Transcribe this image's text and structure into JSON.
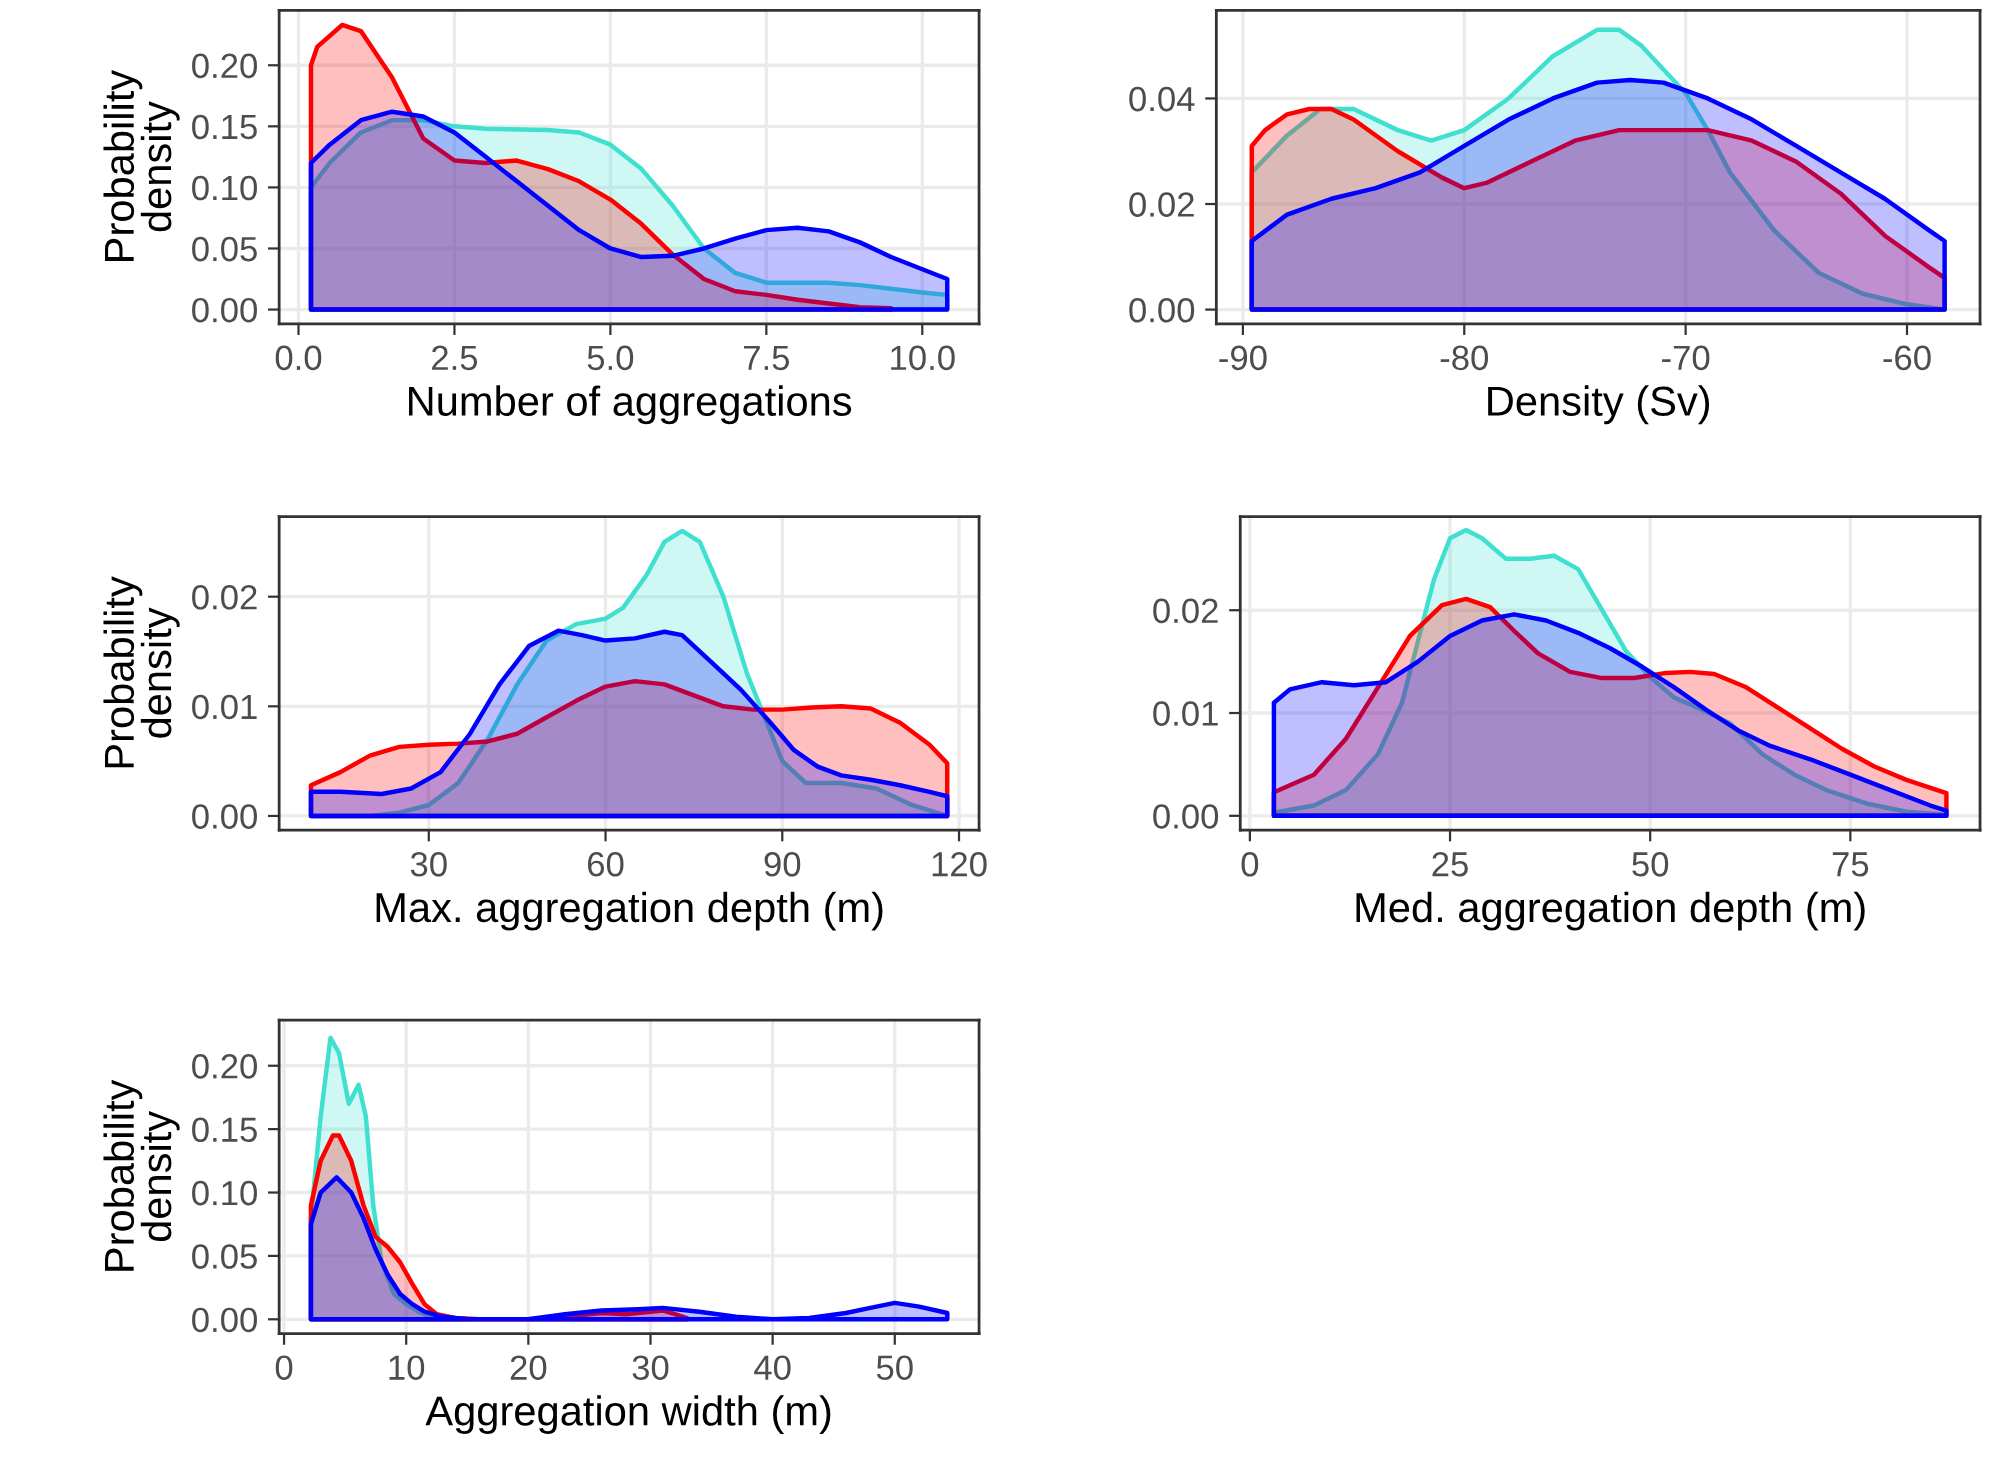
{
  "chart_data": [
    {
      "type": "area",
      "xlabel": "Number of aggregations",
      "ylabel": "Probability\ndensity",
      "xlim": [
        -0.31,
        10.91
      ],
      "ylim": [
        -0.0117,
        0.245
      ],
      "xticks": [
        {
          "value": 0,
          "label": "0.0"
        },
        2.5,
        {
          "value": 5,
          "label": "5.0"
        },
        7.5,
        {
          "value": 10,
          "label": "10.0"
        }
      ],
      "yticks": [
        {
          "value": 0,
          "label": "0.00"
        },
        0.05,
        {
          "value": 0.1,
          "label": "0.10"
        },
        0.15,
        {
          "value": 0.2,
          "label": "0.20"
        }
      ],
      "grid": true,
      "series": [
        {
          "color": "#40e0d0",
          "x": [
            0.2,
            0.5,
            1.0,
            1.5,
            2.0,
            2.5,
            3.0,
            4.0,
            4.5,
            5.0,
            5.5,
            6.0,
            6.5,
            7.0,
            7.5,
            8.0,
            8.5,
            9.0,
            9.5,
            10.0,
            10.4
          ],
          "values": [
            0.1,
            0.12,
            0.145,
            0.155,
            0.155,
            0.15,
            0.148,
            0.147,
            0.145,
            0.135,
            0.115,
            0.085,
            0.05,
            0.03,
            0.022,
            0.022,
            0.022,
            0.02,
            0.017,
            0.014,
            0.012
          ]
        },
        {
          "color": "#ff0000",
          "x": [
            0.2,
            0.3,
            0.7,
            1.0,
            1.5,
            2.0,
            2.5,
            3.0,
            3.5,
            4.0,
            4.5,
            5.0,
            5.5,
            6.0,
            6.5,
            7.0,
            7.5,
            8.0,
            8.5,
            9.0,
            9.5
          ],
          "values": [
            0.2,
            0.215,
            0.233,
            0.228,
            0.19,
            0.14,
            0.122,
            0.12,
            0.122,
            0.115,
            0.105,
            0.09,
            0.07,
            0.045,
            0.025,
            0.015,
            0.012,
            0.008,
            0.005,
            0.002,
            0.001
          ]
        },
        {
          "color": "#0000ff",
          "x": [
            0.2,
            0.5,
            1.0,
            1.5,
            2.0,
            2.5,
            3.0,
            3.5,
            4.0,
            4.5,
            5.0,
            5.5,
            6.0,
            6.5,
            7.0,
            7.5,
            8.0,
            8.5,
            9.0,
            9.5,
            10.0,
            10.4
          ],
          "values": [
            0.12,
            0.135,
            0.155,
            0.162,
            0.158,
            0.145,
            0.125,
            0.105,
            0.085,
            0.065,
            0.05,
            0.043,
            0.044,
            0.05,
            0.058,
            0.065,
            0.067,
            0.064,
            0.055,
            0.043,
            0.033,
            0.025
          ]
        }
      ]
    },
    {
      "type": "area",
      "xlabel": "Density (Sv)",
      "xlim": [
        -91.2,
        -56.7
      ],
      "ylim": [
        -0.0027,
        0.0567
      ],
      "xticks": [
        -90,
        -80,
        -70,
        -60
      ],
      "yticks": [
        {
          "value": 0,
          "label": "0.00"
        },
        0.02,
        0.04
      ],
      "grid": true,
      "series": [
        {
          "color": "#40e0d0",
          "x": [
            -89.6,
            -88,
            -86.5,
            -85,
            -83,
            -81.5,
            -80,
            -78,
            -76,
            -74,
            -73,
            -72,
            -70,
            -69,
            -68,
            -66,
            -64,
            -62,
            -60,
            -58.3
          ],
          "values": [
            0.026,
            0.033,
            0.038,
            0.038,
            0.034,
            0.032,
            0.034,
            0.04,
            0.048,
            0.053,
            0.053,
            0.05,
            0.041,
            0.034,
            0.026,
            0.015,
            0.007,
            0.003,
            0.001,
            0.0
          ]
        },
        {
          "color": "#ff0000",
          "x": [
            -89.6,
            -89,
            -88,
            -87,
            -86,
            -85,
            -83,
            -81,
            -80,
            -79,
            -77,
            -75,
            -73,
            -71,
            -69,
            -67,
            -65,
            -63,
            -61,
            -59,
            -58.3
          ],
          "values": [
            0.031,
            0.034,
            0.037,
            0.038,
            0.038,
            0.036,
            0.03,
            0.025,
            0.023,
            0.024,
            0.028,
            0.032,
            0.034,
            0.034,
            0.034,
            0.032,
            0.028,
            0.022,
            0.014,
            0.008,
            0.006
          ]
        },
        {
          "color": "#0000ff",
          "x": [
            -89.6,
            -88,
            -86,
            -84,
            -82,
            -80,
            -78,
            -76,
            -74,
            -72.5,
            -71,
            -69,
            -67,
            -65,
            -63,
            -61,
            -59,
            -58.3
          ],
          "values": [
            0.013,
            0.018,
            0.021,
            0.023,
            0.026,
            0.031,
            0.036,
            0.04,
            0.043,
            0.0435,
            0.043,
            0.04,
            0.036,
            0.031,
            0.026,
            0.021,
            0.015,
            0.013
          ]
        }
      ]
    },
    {
      "type": "area",
      "xlabel": "Max. aggregation depth (m)",
      "ylabel": "Probability\ndensity",
      "xlim": [
        4.6,
        123.4
      ],
      "ylim": [
        -0.0013,
        0.0273
      ],
      "xticks": [
        30,
        60,
        90,
        120
      ],
      "yticks": [
        {
          "value": 0,
          "label": "0.00"
        },
        0.01,
        0.02
      ],
      "grid": true,
      "series": [
        {
          "color": "#40e0d0",
          "x": [
            10,
            20,
            25,
            30,
            35,
            40,
            45,
            50,
            55,
            60,
            63,
            67,
            70,
            73,
            76,
            80,
            84,
            87,
            90,
            94,
            100,
            106,
            112,
            118
          ],
          "values": [
            0.0,
            0.0,
            0.0003,
            0.001,
            0.003,
            0.007,
            0.012,
            0.016,
            0.0175,
            0.018,
            0.019,
            0.022,
            0.025,
            0.026,
            0.025,
            0.02,
            0.013,
            0.009,
            0.005,
            0.003,
            0.003,
            0.0025,
            0.001,
            0.0
          ]
        },
        {
          "color": "#ff0000",
          "x": [
            10,
            15,
            20,
            25,
            30,
            35,
            40,
            45,
            50,
            55,
            60,
            65,
            70,
            75,
            80,
            85,
            90,
            95,
            100,
            105,
            110,
            115,
            118
          ],
          "values": [
            0.0028,
            0.004,
            0.0055,
            0.0063,
            0.0065,
            0.0066,
            0.0068,
            0.0075,
            0.009,
            0.0105,
            0.0118,
            0.0123,
            0.012,
            0.011,
            0.01,
            0.0097,
            0.0097,
            0.0099,
            0.01,
            0.0098,
            0.0085,
            0.0065,
            0.0048
          ]
        },
        {
          "color": "#0000ff",
          "x": [
            10,
            15,
            22,
            27,
            32,
            37,
            42,
            47,
            52,
            56,
            60,
            65,
            70,
            73,
            78,
            83,
            88,
            92,
            96,
            100,
            105,
            110,
            115,
            118
          ],
          "values": [
            0.0022,
            0.0022,
            0.002,
            0.0025,
            0.004,
            0.0075,
            0.012,
            0.0155,
            0.0169,
            0.0165,
            0.016,
            0.0162,
            0.0168,
            0.0165,
            0.014,
            0.0115,
            0.0085,
            0.006,
            0.0045,
            0.0037,
            0.0033,
            0.0028,
            0.0022,
            0.0018
          ]
        }
      ]
    },
    {
      "type": "area",
      "xlabel": "Med. aggregation depth (m)",
      "xlim": [
        -1.2,
        91.2
      ],
      "ylim": [
        -0.0014,
        0.0291
      ],
      "xticks": [
        0,
        25,
        50,
        75
      ],
      "yticks": [
        {
          "value": 0,
          "label": "0.00"
        },
        0.01,
        0.02
      ],
      "grid": true,
      "series": [
        {
          "color": "#40e0d0",
          "x": [
            3,
            8,
            12,
            16,
            19,
            21,
            23,
            25,
            27,
            29,
            32,
            35,
            38,
            41,
            44,
            47,
            50,
            53,
            56,
            60,
            64,
            68,
            72,
            77,
            82,
            87
          ],
          "values": [
            0.0003,
            0.001,
            0.0025,
            0.006,
            0.011,
            0.017,
            0.023,
            0.027,
            0.0278,
            0.027,
            0.025,
            0.025,
            0.0253,
            0.024,
            0.02,
            0.016,
            0.0135,
            0.0115,
            0.0105,
            0.009,
            0.006,
            0.004,
            0.0025,
            0.0012,
            0.0004,
            0.0001
          ]
        },
        {
          "color": "#ff0000",
          "x": [
            3,
            8,
            12,
            16,
            20,
            24,
            27,
            30,
            33,
            36,
            40,
            44,
            48,
            52,
            55,
            58,
            62,
            66,
            70,
            74,
            78,
            82,
            87
          ],
          "values": [
            0.0023,
            0.004,
            0.0075,
            0.0125,
            0.0175,
            0.0205,
            0.0211,
            0.0203,
            0.018,
            0.0158,
            0.014,
            0.0134,
            0.0134,
            0.0139,
            0.014,
            0.0138,
            0.0125,
            0.0105,
            0.0085,
            0.0065,
            0.0048,
            0.0035,
            0.0022
          ]
        },
        {
          "color": "#0000ff",
          "x": [
            3,
            5,
            9,
            13,
            17,
            21,
            25,
            29,
            33,
            37,
            41,
            45,
            49,
            53,
            57,
            61,
            65,
            70,
            75,
            80,
            85,
            87
          ],
          "values": [
            0.011,
            0.0123,
            0.013,
            0.0127,
            0.013,
            0.015,
            0.0175,
            0.019,
            0.0196,
            0.019,
            0.0178,
            0.0163,
            0.0145,
            0.0125,
            0.0103,
            0.0083,
            0.0068,
            0.0055,
            0.004,
            0.0025,
            0.001,
            0.0005
          ]
        }
      ]
    },
    {
      "type": "area",
      "xlabel": "Aggregation width (m)",
      "ylabel": "Probability\ndensity",
      "xlim": [
        -0.4,
        56.9
      ],
      "ylim": [
        -0.0113,
        0.236
      ],
      "xticks": [
        0,
        10,
        20,
        30,
        40,
        50
      ],
      "yticks": [
        {
          "value": 0,
          "label": "0.00"
        },
        0.05,
        {
          "value": 0.1,
          "label": "0.10"
        },
        0.15,
        {
          "value": 0.2,
          "label": "0.20"
        }
      ],
      "grid": true,
      "series": [
        {
          "color": "#40e0d0",
          "x": [
            2.2,
            3,
            3.8,
            4.5,
            5.3,
            6.1,
            6.7,
            7.3,
            8,
            9,
            10,
            11,
            12,
            13,
            15
          ],
          "values": [
            0.08,
            0.16,
            0.222,
            0.21,
            0.17,
            0.185,
            0.16,
            0.09,
            0.045,
            0.02,
            0.012,
            0.006,
            0.002,
            0.001,
            0.0
          ]
        },
        {
          "color": "#ff0000",
          "x": [
            2.2,
            3,
            4,
            4.5,
            5.5,
            6.5,
            7.5,
            8.5,
            9.5,
            10.5,
            11.5,
            12.5,
            14,
            16,
            20,
            23,
            26,
            28,
            30,
            31,
            32,
            33
          ],
          "values": [
            0.09,
            0.125,
            0.145,
            0.145,
            0.125,
            0.09,
            0.065,
            0.057,
            0.045,
            0.028,
            0.012,
            0.004,
            0.001,
            0.0,
            0.0,
            0.002,
            0.005,
            0.004,
            0.006,
            0.007,
            0.004,
            0.001
          ]
        },
        {
          "color": "#0000ff",
          "x": [
            2.2,
            3,
            4.3,
            5.5,
            6.5,
            7.5,
            8.5,
            9.5,
            10.5,
            11.5,
            13,
            15,
            20,
            23,
            26,
            29,
            31,
            34,
            37,
            40,
            43,
            46,
            48,
            50,
            52,
            54.3
          ],
          "values": [
            0.075,
            0.1,
            0.112,
            0.1,
            0.08,
            0.055,
            0.035,
            0.02,
            0.012,
            0.006,
            0.002,
            0.0,
            0.0,
            0.004,
            0.007,
            0.008,
            0.009,
            0.006,
            0.002,
            0.0,
            0.001,
            0.005,
            0.009,
            0.013,
            0.01,
            0.005
          ]
        }
      ]
    }
  ]
}
